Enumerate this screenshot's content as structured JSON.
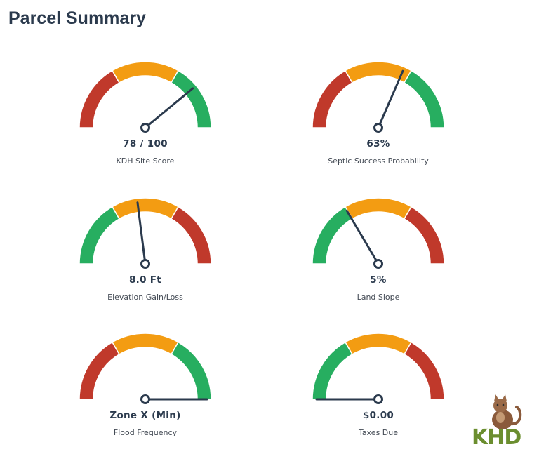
{
  "page": {
    "title": "Parcel Summary"
  },
  "colors": {
    "red": "#c0392b",
    "orange": "#f39c12",
    "green": "#27ae60",
    "needle": "#2b3a4d"
  },
  "gauges": [
    {
      "id": "kdh-site-score",
      "value_text": "78 / 100",
      "label": "KDH Site Score",
      "needle_fraction": 0.78,
      "scheme": "red-orange-green"
    },
    {
      "id": "septic-success",
      "value_text": "63%",
      "label": "Septic Success Probability",
      "needle_fraction": 0.63,
      "scheme": "red-orange-green"
    },
    {
      "id": "elevation",
      "value_text": "8.0 Ft",
      "label": "Elevation Gain/Loss",
      "needle_fraction": 0.46,
      "scheme": "green-orange-red"
    },
    {
      "id": "land-slope",
      "value_text": "5%",
      "label": "Land Slope",
      "needle_fraction": 0.33,
      "scheme": "green-orange-red"
    },
    {
      "id": "flood-frequency",
      "value_text": "Zone X (Min)",
      "label": "Flood Frequency",
      "needle_fraction": 1.0,
      "scheme": "red-orange-green"
    },
    {
      "id": "taxes-due",
      "value_text": "$0.00",
      "label": "Taxes Due",
      "needle_fraction": 0.0,
      "scheme": "green-orange-red"
    }
  ],
  "logo": {
    "text": "KHD",
    "icon": "cat-icon"
  }
}
